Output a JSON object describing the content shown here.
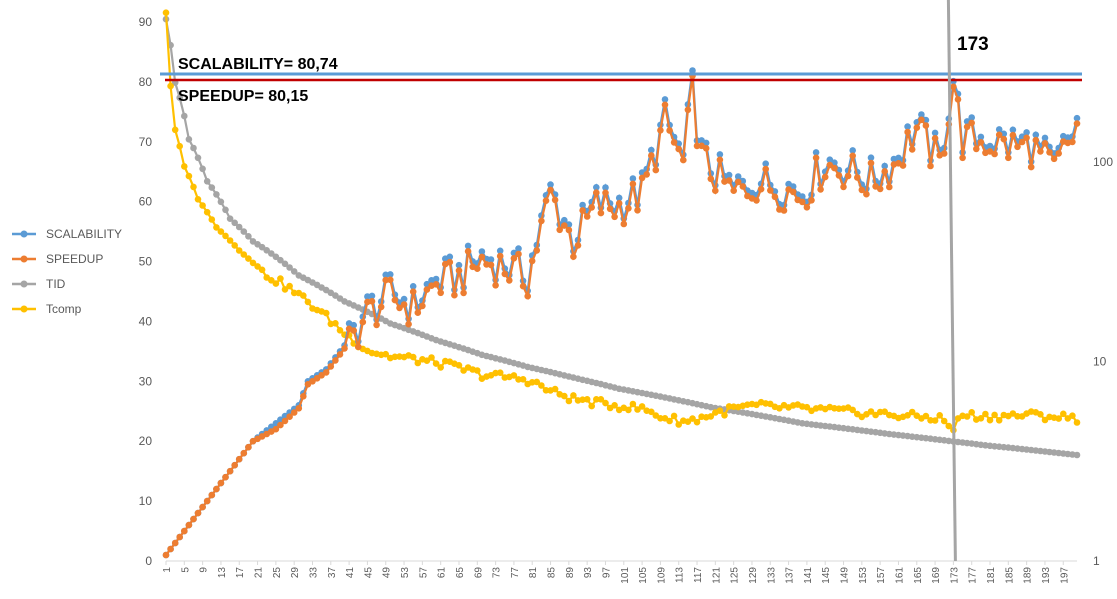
{
  "chart_data": {
    "type": "line",
    "title": "",
    "xlabel": "",
    "ylabel": "",
    "x_tick_labels": [
      "1",
      "5",
      "9",
      "13",
      "17",
      "21",
      "25",
      "29",
      "33",
      "37",
      "41",
      "45",
      "49",
      "53",
      "57",
      "61",
      "65",
      "69",
      "73",
      "77",
      "81",
      "85",
      "89",
      "93",
      "97",
      "101",
      "105",
      "109",
      "113",
      "117",
      "121",
      "125",
      "129",
      "133",
      "137",
      "141",
      "145",
      "149",
      "153",
      "157",
      "161",
      "165",
      "169",
      "173",
      "177",
      "181",
      "185",
      "189",
      "193",
      "197"
    ],
    "xlim": [
      1,
      200
    ],
    "ylim_left": [
      0,
      90
    ],
    "yticks_left": [
      "0",
      "10",
      "20",
      "30",
      "40",
      "50",
      "60",
      "70",
      "80",
      "90"
    ],
    "ylim_right_log": [
      1,
      100
    ],
    "yticks_right": [
      "1",
      "10",
      "100"
    ],
    "grid": false,
    "legend_position": "left",
    "annotations": {
      "scalability": "SCALABILITY= 80,74",
      "speedup": "SPEEDUP= 80,15",
      "vline": "173"
    },
    "hlines": [
      {
        "name": "SCALABILITY",
        "y": 80.74
      },
      {
        "name": "SPEEDUP",
        "y": 80.15
      }
    ],
    "vline_x": 173,
    "series": [
      {
        "name": "SCALABILITY",
        "axis": "left",
        "color": "#5B9BD5",
        "keypoints": [
          [
            1,
            1
          ],
          [
            10,
            10
          ],
          [
            20,
            20
          ],
          [
            25,
            23
          ],
          [
            30,
            26
          ],
          [
            32,
            30
          ],
          [
            36,
            32
          ],
          [
            40,
            36
          ],
          [
            45,
            42
          ],
          [
            50,
            45
          ],
          [
            55,
            43
          ],
          [
            60,
            47
          ],
          [
            65,
            48
          ],
          [
            70,
            51
          ],
          [
            75,
            50
          ],
          [
            80,
            48
          ],
          [
            85,
            62
          ],
          [
            90,
            54
          ],
          [
            95,
            60
          ],
          [
            100,
            60
          ],
          [
            105,
            62
          ],
          [
            110,
            74
          ],
          [
            114,
            67
          ],
          [
            116,
            79
          ],
          [
            118,
            68
          ],
          [
            120,
            66
          ],
          [
            125,
            62
          ],
          [
            130,
            64
          ],
          [
            135,
            63
          ],
          [
            140,
            62
          ],
          [
            145,
            67
          ],
          [
            150,
            66
          ],
          [
            155,
            64
          ],
          [
            160,
            67
          ],
          [
            165,
            73
          ],
          [
            170,
            67
          ],
          [
            173,
            80.7
          ],
          [
            175,
            71
          ],
          [
            180,
            71
          ],
          [
            185,
            70
          ],
          [
            190,
            70
          ],
          [
            195,
            66
          ],
          [
            200,
            73
          ]
        ]
      },
      {
        "name": "SPEEDUP",
        "axis": "left",
        "color": "#ED7D31",
        "keypoints": [
          [
            1,
            1
          ],
          [
            10,
            10
          ],
          [
            20,
            20
          ],
          [
            25,
            22
          ],
          [
            30,
            25.5
          ],
          [
            32,
            29.5
          ],
          [
            36,
            31.5
          ],
          [
            40,
            35.5
          ],
          [
            45,
            41.5
          ],
          [
            50,
            44.5
          ],
          [
            55,
            42.5
          ],
          [
            60,
            46.5
          ],
          [
            65,
            47.5
          ],
          [
            70,
            50.5
          ],
          [
            75,
            49.5
          ],
          [
            80,
            47.5
          ],
          [
            85,
            61.5
          ],
          [
            90,
            53.5
          ],
          [
            95,
            59.5
          ],
          [
            100,
            59.5
          ],
          [
            105,
            61.5
          ],
          [
            110,
            73.5
          ],
          [
            114,
            66.5
          ],
          [
            116,
            78.5
          ],
          [
            118,
            67.5
          ],
          [
            120,
            65.5
          ],
          [
            125,
            61.5
          ],
          [
            130,
            63.5
          ],
          [
            135,
            62.5
          ],
          [
            140,
            61.5
          ],
          [
            145,
            66.5
          ],
          [
            150,
            65.5
          ],
          [
            155,
            63.5
          ],
          [
            160,
            66.5
          ],
          [
            165,
            72.5
          ],
          [
            170,
            66.5
          ],
          [
            173,
            80.15
          ],
          [
            175,
            70.5
          ],
          [
            180,
            70.5
          ],
          [
            185,
            69.5
          ],
          [
            190,
            69.5
          ],
          [
            195,
            65.5
          ],
          [
            200,
            72.5
          ]
        ]
      },
      {
        "name": "TID",
        "axis": "right_log",
        "color": "#A5A5A5",
        "keypoints": [
          [
            1,
            520
          ],
          [
            3,
            250
          ],
          [
            6,
            130
          ],
          [
            10,
            80
          ],
          [
            15,
            52
          ],
          [
            20,
            40
          ],
          [
            30,
            27
          ],
          [
            40,
            20
          ],
          [
            50,
            15.5
          ],
          [
            60,
            12.8
          ],
          [
            70,
            10.8
          ],
          [
            80,
            9.4
          ],
          [
            90,
            8.3
          ],
          [
            100,
            7.3
          ],
          [
            120,
            5.9
          ],
          [
            140,
            4.9
          ],
          [
            160,
            4.3
          ],
          [
            180,
            3.8
          ],
          [
            200,
            3.4
          ]
        ]
      },
      {
        "name": "Tcomp",
        "axis": "right_log",
        "color": "#FFC000",
        "keypoints": [
          [
            1,
            560
          ],
          [
            2,
            240
          ],
          [
            3,
            145
          ],
          [
            5,
            95
          ],
          [
            8,
            65
          ],
          [
            12,
            47
          ],
          [
            17,
            36
          ],
          [
            22,
            28
          ],
          [
            27,
            24
          ],
          [
            30,
            21.5
          ],
          [
            35,
            17.5
          ],
          [
            40,
            13.8
          ],
          [
            45,
            11.4
          ],
          [
            50,
            10.6
          ],
          [
            55,
            10.3
          ],
          [
            60,
            9.9
          ],
          [
            65,
            9.3
          ],
          [
            70,
            8.6
          ],
          [
            75,
            8.4
          ],
          [
            80,
            8.1
          ],
          [
            85,
            7.1
          ],
          [
            90,
            6.5
          ],
          [
            95,
            6.2
          ],
          [
            100,
            6.0
          ],
          [
            105,
            5.8
          ],
          [
            110,
            5.2
          ],
          [
            115,
            5.0
          ],
          [
            120,
            5.4
          ],
          [
            125,
            5.8
          ],
          [
            130,
            6.0
          ],
          [
            140,
            5.8
          ],
          [
            150,
            5.6
          ],
          [
            160,
            5.4
          ],
          [
            170,
            5.2
          ],
          [
            173,
            4.6
          ],
          [
            175,
            5.4
          ],
          [
            180,
            5.3
          ],
          [
            190,
            5.4
          ],
          [
            200,
            5.2
          ]
        ]
      }
    ]
  },
  "legend": [
    {
      "label": "SCALABILITY",
      "color": "#5B9BD5"
    },
    {
      "label": "SPEEDUP",
      "color": "#ED7D31"
    },
    {
      "label": "TID",
      "color": "#A5A5A5"
    },
    {
      "label": "Tcomp",
      "color": "#FFC000"
    }
  ]
}
